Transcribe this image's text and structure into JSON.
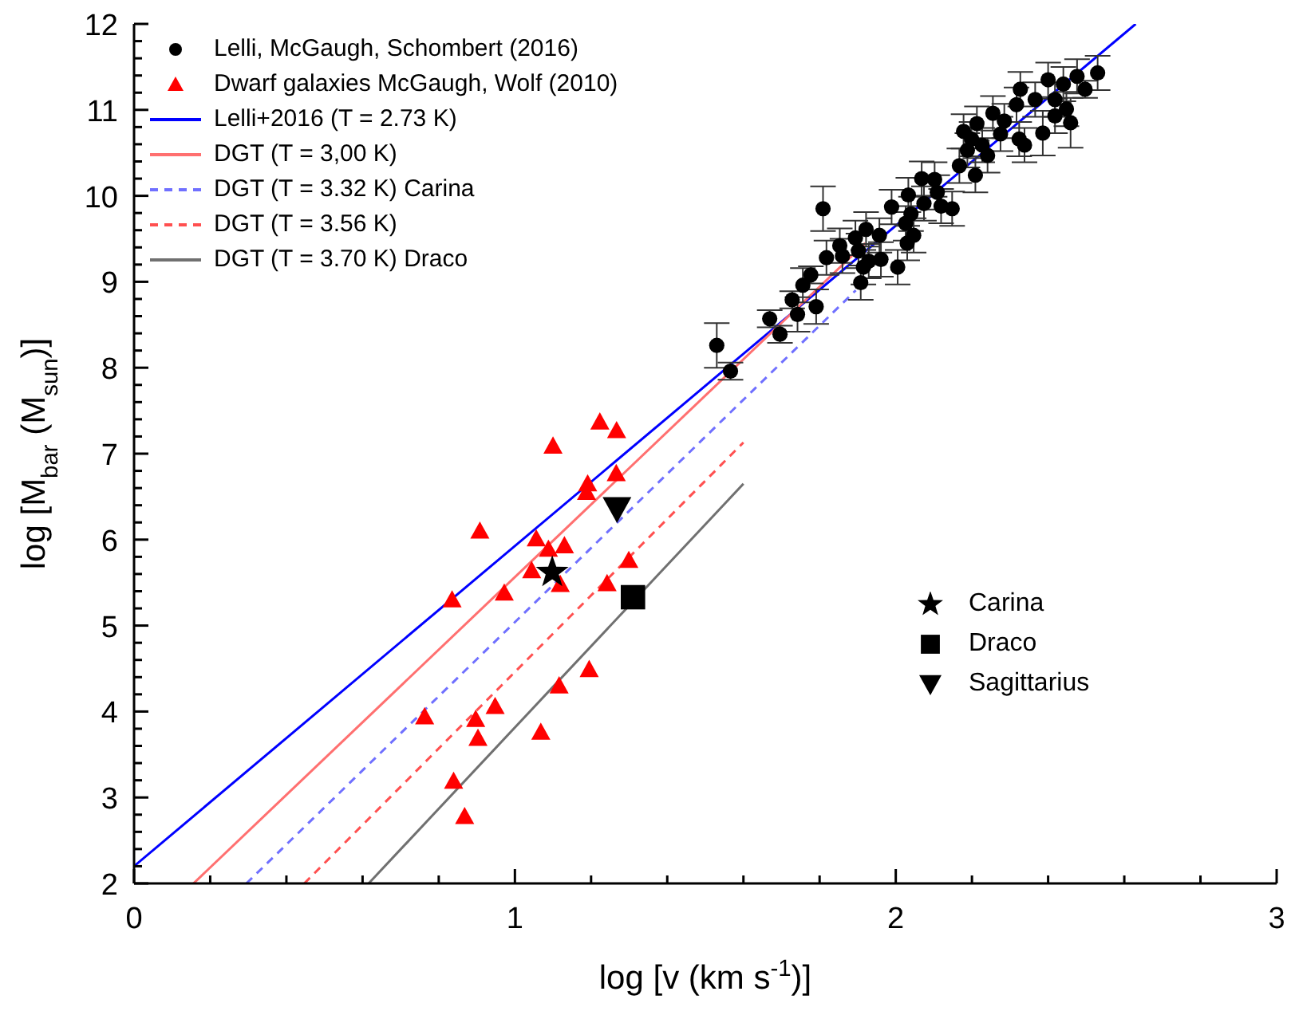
{
  "chart_data": {
    "type": "scatter",
    "xlabel": "log [v (km s$^{-1}$)]",
    "ylabel": "log [M$_{bar}$ (M$_{sun}$)]",
    "xlim": [
      0,
      3
    ],
    "ylim": [
      2,
      12
    ],
    "xticks": [
      0,
      {
        "value": 0.2,
        "label": null
      },
      {
        "value": 0.4,
        "label": null
      },
      {
        "value": 0.6,
        "label": null
      },
      {
        "value": 0.8,
        "label": null
      },
      1,
      {
        "value": 1.2,
        "label": null
      },
      {
        "value": 1.4,
        "label": null
      },
      {
        "value": 1.6,
        "label": null
      },
      {
        "value": 1.8,
        "label": null
      },
      2,
      {
        "value": 2.2,
        "label": null
      },
      {
        "value": 2.4,
        "label": null
      },
      {
        "value": 2.6,
        "label": null
      },
      {
        "value": 2.8,
        "label": null
      },
      3
    ],
    "yticks": [
      2,
      {
        "value": 2.2,
        "label": null
      },
      {
        "value": 2.4,
        "label": null
      },
      {
        "value": 2.6,
        "label": null
      },
      {
        "value": 2.8,
        "label": null
      },
      3,
      {
        "value": 3.2,
        "label": null
      },
      {
        "value": 3.4,
        "label": null
      },
      {
        "value": 3.6,
        "label": null
      },
      {
        "value": 3.8,
        "label": null
      },
      4,
      {
        "value": 4.2,
        "label": null
      },
      {
        "value": 4.4,
        "label": null
      },
      {
        "value": 4.6,
        "label": null
      },
      {
        "value": 4.8,
        "label": null
      },
      5,
      {
        "value": 5.2,
        "label": null
      },
      {
        "value": 5.4,
        "label": null
      },
      {
        "value": 5.6,
        "label": null
      },
      {
        "value": 5.8,
        "label": null
      },
      6,
      {
        "value": 6.2,
        "label": null
      },
      {
        "value": 6.4,
        "label": null
      },
      {
        "value": 6.6,
        "label": null
      },
      {
        "value": 6.8,
        "label": null
      },
      7,
      {
        "value": 7.2,
        "label": null
      },
      {
        "value": 7.4,
        "label": null
      },
      {
        "value": 7.6,
        "label": null
      },
      {
        "value": 7.8,
        "label": null
      },
      8,
      {
        "value": 8.2,
        "label": null
      },
      {
        "value": 8.4,
        "label": null
      },
      {
        "value": 8.6,
        "label": null
      },
      {
        "value": 8.8,
        "label": null
      },
      9,
      {
        "value": 9.2,
        "label": null
      },
      {
        "value": 9.4,
        "label": null
      },
      {
        "value": 9.6,
        "label": null
      },
      {
        "value": 9.8,
        "label": null
      },
      10,
      {
        "value": 10.2,
        "label": null
      },
      {
        "value": 10.4,
        "label": null
      },
      {
        "value": 10.6,
        "label": null
      },
      {
        "value": 10.8,
        "label": null
      },
      11,
      {
        "value": 11.2,
        "label": null
      },
      {
        "value": 11.4,
        "label": null
      },
      {
        "value": 11.6,
        "label": null
      },
      {
        "value": 11.8,
        "label": null
      },
      12
    ],
    "legend": "top left",
    "series": [
      {
        "name": "Lelli, McGaugh, Schombert (2016)",
        "marker": "circle",
        "color": "#000000",
        "x": [
          1.53,
          1.566,
          1.669,
          1.696,
          1.728,
          1.742,
          1.756,
          1.777,
          1.791,
          1.809,
          1.818,
          1.853,
          1.86,
          1.894,
          1.902,
          1.915,
          1.908,
          1.922,
          1.929,
          1.957,
          1.961,
          1.989,
          2.005,
          2.026,
          2.03,
          2.033,
          2.04,
          2.047,
          2.068,
          2.074,
          2.102,
          2.109,
          2.119,
          2.148,
          2.167,
          2.178,
          2.188,
          2.199,
          2.209,
          2.213,
          2.227,
          2.241,
          2.255,
          2.275,
          2.285,
          2.317,
          2.324,
          2.338,
          2.327,
          2.366,
          2.386,
          2.418,
          2.418,
          2.448,
          2.459,
          2.497,
          2.476,
          2.53,
          2.4,
          2.44
        ],
        "values": [
          8.26,
          7.96,
          8.57,
          8.39,
          8.79,
          8.62,
          8.96,
          9.08,
          8.71,
          9.85,
          9.28,
          9.42,
          9.3,
          9.51,
          9.36,
          9.17,
          8.99,
          9.61,
          9.24,
          9.54,
          9.26,
          9.87,
          9.17,
          9.68,
          9.45,
          10.01,
          9.79,
          9.54,
          10.2,
          9.91,
          10.19,
          10.04,
          9.88,
          9.85,
          10.35,
          10.75,
          10.53,
          10.66,
          10.24,
          10.84,
          10.59,
          10.47,
          10.96,
          10.72,
          10.87,
          11.06,
          10.66,
          10.59,
          11.24,
          11.12,
          10.73,
          11.12,
          10.93,
          11.01,
          10.85,
          11.24,
          11.39,
          11.43,
          11.35,
          11.3
        ],
        "errors": [
          0.26,
          0.1,
          0.1,
          0.1,
          0.1,
          0.2,
          0.2,
          0.1,
          0.2,
          0.26,
          0.2,
          0.2,
          0.2,
          0.2,
          0.2,
          0.2,
          0.2,
          0.2,
          0.2,
          0.2,
          0.2,
          0.2,
          0.2,
          0.2,
          0.2,
          0.2,
          0.2,
          0.2,
          0.2,
          0.2,
          0.2,
          0.2,
          0.2,
          0.2,
          0.2,
          0.2,
          0.2,
          0.2,
          0.2,
          0.2,
          0.2,
          0.2,
          0.2,
          0.2,
          0.2,
          0.2,
          0.2,
          0.2,
          0.2,
          0.2,
          0.26,
          0.2,
          0.2,
          0.2,
          0.29,
          0.1,
          0.2,
          0.2,
          0.2,
          0.2
        ]
      },
      {
        "name": "Dwarf galaxies McGaugh, Wolf (2010)",
        "marker": "triangle",
        "color": "#ff0000",
        "x": [
          1.223,
          1.267,
          1.1,
          1.191,
          1.188,
          1.266,
          0.908,
          1.056,
          1.088,
          1.13,
          1.044,
          1.119,
          1.299,
          1.242,
          0.972,
          0.835,
          1.195,
          1.116,
          0.948,
          0.763,
          0.897,
          0.903,
          1.068,
          0.839,
          0.868
        ],
        "values": [
          7.37,
          7.27,
          7.09,
          6.65,
          6.55,
          6.77,
          6.1,
          6.01,
          5.89,
          5.93,
          5.64,
          5.48,
          5.76,
          5.49,
          5.38,
          5.3,
          4.49,
          4.3,
          4.06,
          3.94,
          3.91,
          3.69,
          3.76,
          3.19,
          2.78
        ]
      },
      {
        "name": "Lelli+2016 (T = 2.73 K)",
        "type": "line",
        "line_style": "solid",
        "color": "#0000ff",
        "x": [
          0,
          2.63
        ],
        "values": [
          2.2,
          12
        ]
      },
      {
        "name": "DGT (T = 3,00 K)",
        "type": "line",
        "line_style": "solid",
        "color": "#ff7070",
        "x": [
          0.156,
          1.92
        ],
        "values": [
          2,
          9.45
        ]
      },
      {
        "name": "DGT (T = 3.32 K) Carina",
        "type": "line",
        "line_style": "dashed",
        "color": "#7070ff",
        "x": [
          0.295,
          1.895
        ],
        "values": [
          2,
          8.9
        ]
      },
      {
        "name": "DGT (T = 3.56 K)",
        "type": "line",
        "line_style": "dashed",
        "color": "#ff5050",
        "x": [
          0.447,
          1.6
        ],
        "values": [
          2,
          7.13
        ]
      },
      {
        "name": "DGT (T = 3.70 K) Draco",
        "type": "line",
        "line_style": "solid",
        "color": "#707070",
        "x": [
          0.616,
          1.6
        ],
        "values": [
          2,
          6.65
        ]
      },
      {
        "name": "Carina",
        "marker": "star",
        "color": "#000000",
        "x": [
          1.098
        ],
        "values": [
          5.62
        ]
      },
      {
        "name": "Draco",
        "marker": "square",
        "color": "#000000",
        "x": [
          1.31
        ],
        "values": [
          5.33
        ]
      },
      {
        "name": "Sagittarius",
        "marker": "triangle-down",
        "color": "#000000",
        "x": [
          1.268
        ],
        "values": [
          6.36
        ]
      }
    ]
  }
}
